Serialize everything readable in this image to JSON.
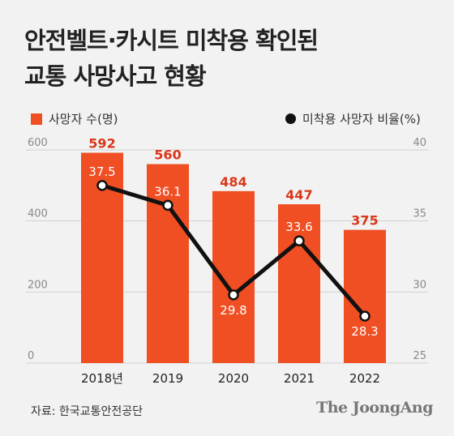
{
  "title_line1": "안전벨트·카시트 미착용 확인된",
  "title_line2": "교통 사망사고 현황",
  "legend": {
    "deaths_label": "사망자 수(명)",
    "rate_label": "미착용 사망자 비율(%)"
  },
  "source": "자료: 한국교통안전공단",
  "brand": "The JoongAng",
  "colors": {
    "bar": "#f04e23",
    "line": "#111111",
    "bar_label": "#d9381b",
    "background": "#f2f2f2"
  },
  "chart_data": {
    "type": "bar+line",
    "categories": [
      "2018년",
      "2019",
      "2020",
      "2021",
      "2022"
    ],
    "series": [
      {
        "name": "사망자 수(명)",
        "type": "bar",
        "axis": "left",
        "values": [
          592,
          560,
          484,
          447,
          375
        ],
        "labels": [
          "592",
          "560",
          "484",
          "447",
          "375"
        ]
      },
      {
        "name": "미착용 사망자 비율(%)",
        "type": "line",
        "axis": "right",
        "values": [
          37.5,
          36.1,
          29.8,
          33.6,
          28.3
        ],
        "labels": [
          "37.5",
          "36.1",
          "29.8",
          "33.6",
          "28.3"
        ]
      }
    ],
    "left_axis": {
      "ticks": [
        "0",
        "200",
        "400",
        "600"
      ],
      "tick_values": [
        0,
        200,
        400,
        600
      ],
      "range": [
        0,
        600
      ]
    },
    "right_axis": {
      "ticks": [
        "25",
        "30",
        "35",
        "40"
      ],
      "tick_values": [
        25,
        30,
        35,
        40
      ],
      "range": [
        25,
        40
      ]
    },
    "grid": true
  }
}
